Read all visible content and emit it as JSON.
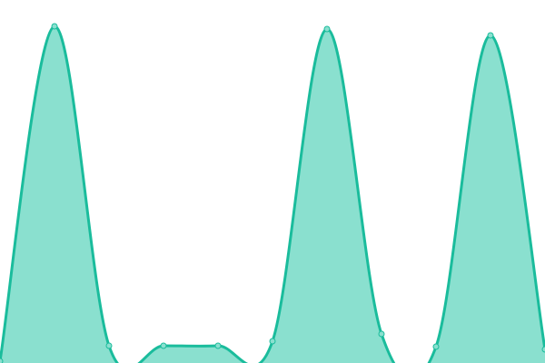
{
  "chart_data": {
    "type": "area",
    "x": [
      0,
      1,
      2,
      3,
      4,
      5,
      6,
      7,
      8,
      9,
      10
    ],
    "series": [
      {
        "values": [
          2,
          371,
          19,
          19,
          19,
          24,
          368,
          32,
          18,
          361,
          15
        ]
      }
    ],
    "ylim": [
      0,
      400
    ],
    "grid": false,
    "axes_visible": false,
    "smooth": true,
    "colors": {
      "line": "#1abc9c",
      "fill": "#8ae0cf",
      "point_fill": "#8ae0cf"
    }
  }
}
